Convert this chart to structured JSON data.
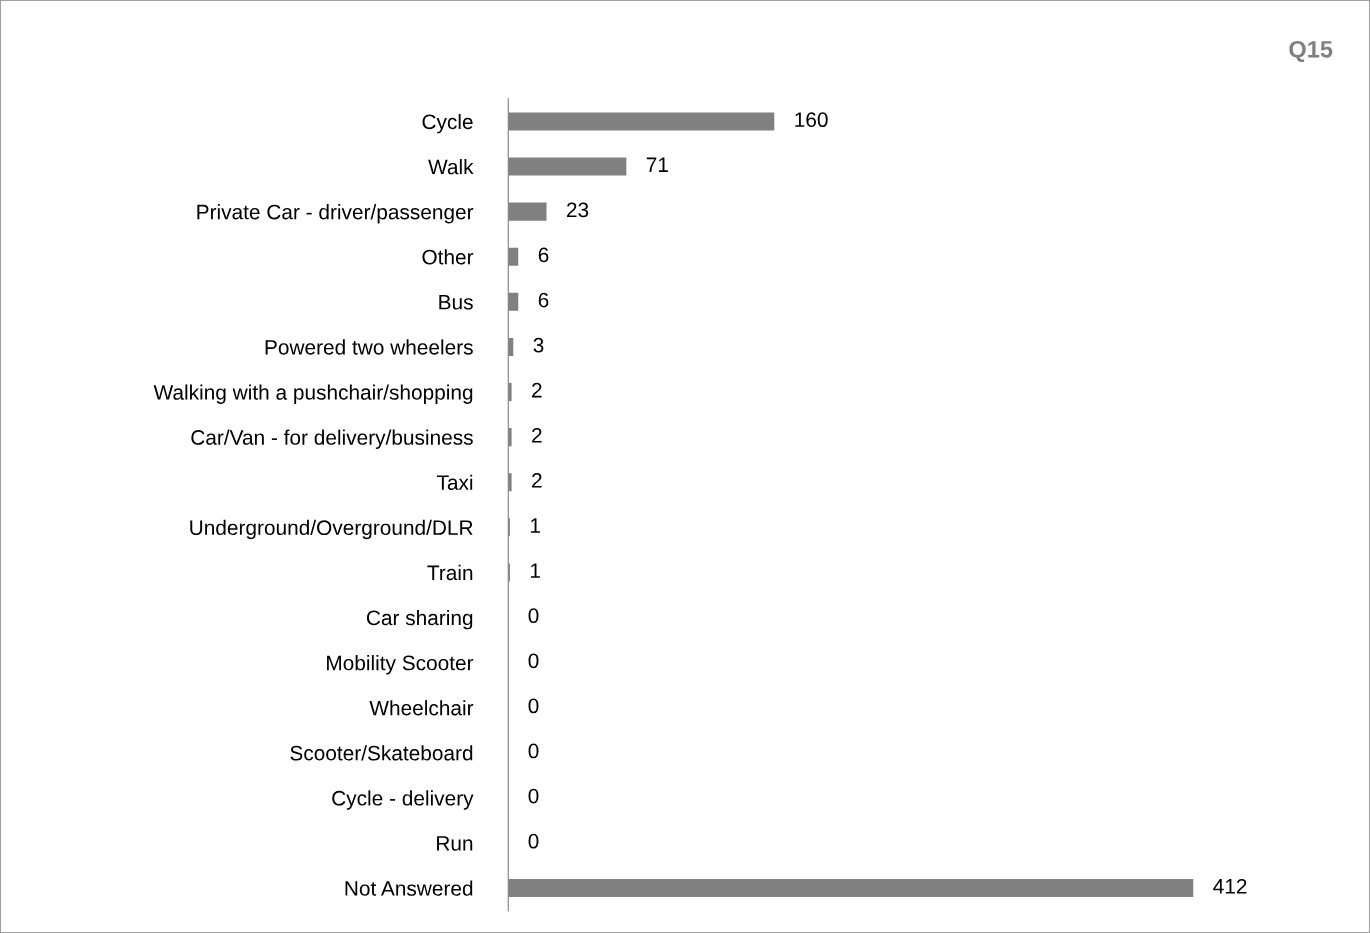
{
  "chart_data": {
    "type": "bar",
    "orientation": "horizontal",
    "title": "Q15",
    "categories": [
      "Cycle",
      "Walk",
      "Private Car - driver/passenger",
      "Other",
      "Bus",
      "Powered two wheelers",
      "Walking with a pushchair/shopping",
      "Car/Van - for delivery/business",
      "Taxi",
      "Underground/Overground/DLR",
      "Train",
      "Car sharing",
      "Mobility Scooter",
      "Wheelchair",
      "Scooter/Skateboard",
      "Cycle - delivery",
      "Run",
      "Not Answered"
    ],
    "values": [
      160,
      71,
      23,
      6,
      6,
      3,
      2,
      2,
      2,
      1,
      1,
      0,
      0,
      0,
      0,
      0,
      0,
      412
    ],
    "color": "#808080",
    "data_labels": true,
    "grid": false,
    "legend": false,
    "tick_labels": "y"
  }
}
